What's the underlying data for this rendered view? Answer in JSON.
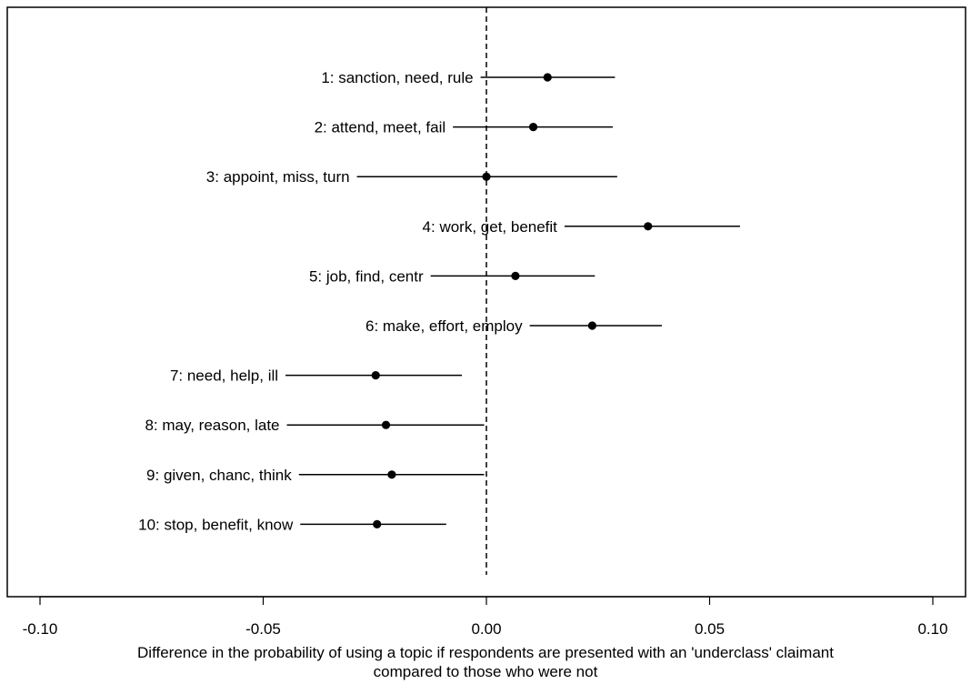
{
  "chart_data": {
    "type": "scatter",
    "subtype": "coefficient-plot",
    "title": "",
    "xlabel_line1": "Difference in the probability of using a topic if respondents are presented with an 'underclass' claimant",
    "xlabel_line2": "compared to those who were not",
    "ylabel": "",
    "xlim": [
      -0.1,
      0.1
    ],
    "xticks": [
      -0.1,
      -0.05,
      0.0,
      0.05,
      0.1
    ],
    "xtick_labels": [
      "-0.10",
      "-0.05",
      "0.00",
      "0.05",
      "0.10"
    ],
    "reference_line": 0,
    "grid": false,
    "series": [
      {
        "label": "1: sanction, need, rule",
        "estimate": 0.0137,
        "lower": -0.0013,
        "upper": 0.0288
      },
      {
        "label": "2: attend, meet, fail",
        "estimate": 0.0105,
        "lower": -0.0075,
        "upper": 0.0283
      },
      {
        "label": "3: appoint, miss, turn",
        "estimate": 0.0,
        "lower": -0.029,
        "upper": 0.0293
      },
      {
        "label": "4: work, get, benefit",
        "estimate": 0.0362,
        "lower": 0.0175,
        "upper": 0.0568
      },
      {
        "label": "5: job, find, centr",
        "estimate": 0.0065,
        "lower": -0.0125,
        "upper": 0.0243
      },
      {
        "label": "6: make, effort, employ",
        "estimate": 0.0237,
        "lower": 0.0097,
        "upper": 0.0393
      },
      {
        "label": "7: need, help, ill",
        "estimate": -0.0248,
        "lower": -0.045,
        "upper": -0.0055
      },
      {
        "label": "8: may, reason, late",
        "estimate": -0.0225,
        "lower": -0.0447,
        "upper": -0.0005
      },
      {
        "label": "9: given, chanc, think",
        "estimate": -0.0212,
        "lower": -0.042,
        "upper": -0.0005
      },
      {
        "label": "10: stop, benefit, know",
        "estimate": -0.0245,
        "lower": -0.0417,
        "upper": -0.009
      }
    ]
  }
}
